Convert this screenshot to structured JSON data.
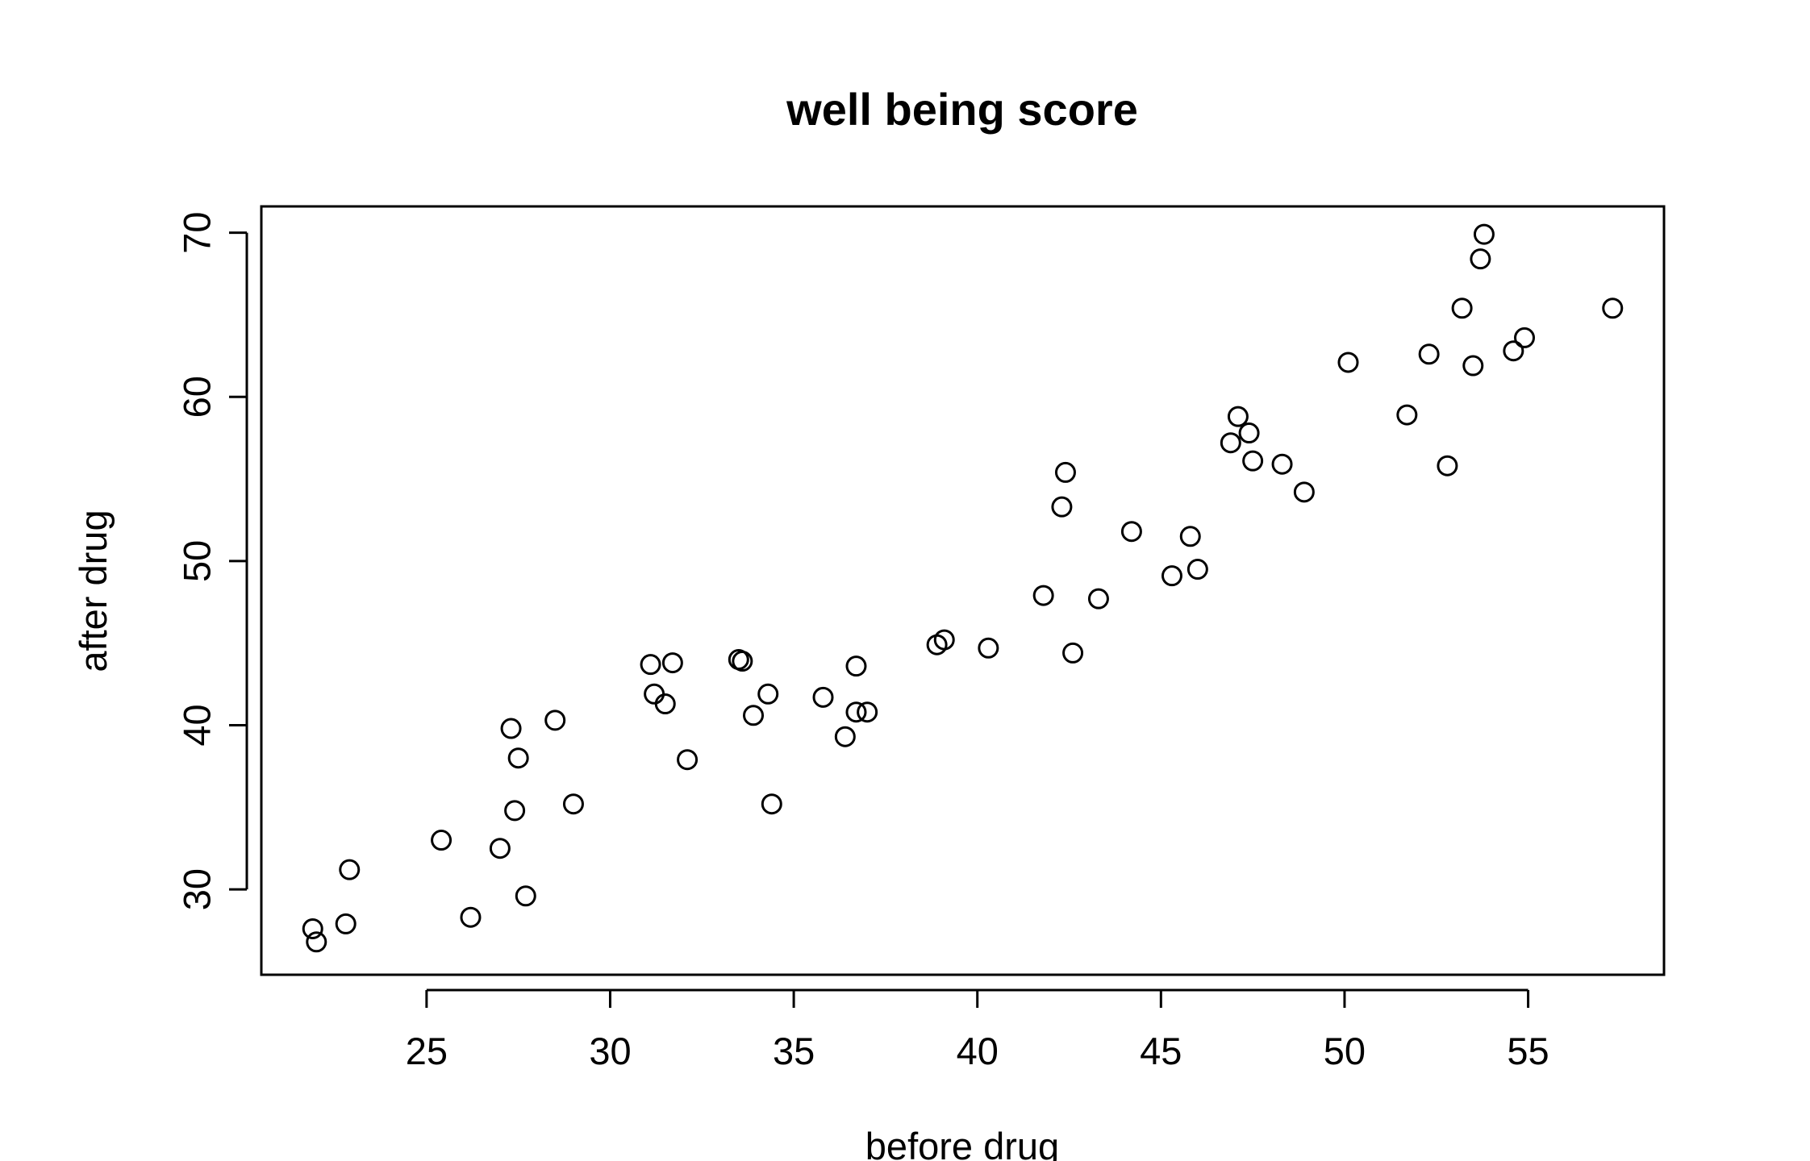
{
  "chart_data": {
    "type": "scatter",
    "title": "well being score",
    "xlabel": "before drug",
    "ylabel": "after drug",
    "xlim": [
      20.5,
      58.7
    ],
    "ylim": [
      24.8,
      71.6
    ],
    "xticks": [
      25,
      30,
      35,
      40,
      45,
      50,
      55
    ],
    "yticks": [
      30,
      40,
      50,
      60,
      70
    ],
    "grid": false,
    "points": [
      {
        "x": 21.9,
        "y": 27.6
      },
      {
        "x": 22.0,
        "y": 26.8
      },
      {
        "x": 22.8,
        "y": 27.9
      },
      {
        "x": 22.9,
        "y": 31.2
      },
      {
        "x": 25.4,
        "y": 33.0
      },
      {
        "x": 26.2,
        "y": 28.3
      },
      {
        "x": 27.0,
        "y": 32.5
      },
      {
        "x": 27.3,
        "y": 39.8
      },
      {
        "x": 27.4,
        "y": 34.8
      },
      {
        "x": 27.5,
        "y": 38.0
      },
      {
        "x": 27.7,
        "y": 29.6
      },
      {
        "x": 28.5,
        "y": 40.3
      },
      {
        "x": 29.0,
        "y": 35.2
      },
      {
        "x": 31.1,
        "y": 43.7
      },
      {
        "x": 31.2,
        "y": 41.9
      },
      {
        "x": 31.5,
        "y": 41.3
      },
      {
        "x": 31.7,
        "y": 43.8
      },
      {
        "x": 32.1,
        "y": 37.9
      },
      {
        "x": 33.5,
        "y": 44.0
      },
      {
        "x": 33.6,
        "y": 43.9
      },
      {
        "x": 33.9,
        "y": 40.6
      },
      {
        "x": 34.3,
        "y": 41.9
      },
      {
        "x": 34.4,
        "y": 35.2
      },
      {
        "x": 35.8,
        "y": 41.7
      },
      {
        "x": 36.4,
        "y": 39.3
      },
      {
        "x": 36.7,
        "y": 43.6
      },
      {
        "x": 36.7,
        "y": 40.8
      },
      {
        "x": 37.0,
        "y": 40.8
      },
      {
        "x": 38.9,
        "y": 44.9
      },
      {
        "x": 39.1,
        "y": 45.2
      },
      {
        "x": 40.3,
        "y": 44.7
      },
      {
        "x": 41.8,
        "y": 47.9
      },
      {
        "x": 42.3,
        "y": 53.3
      },
      {
        "x": 42.4,
        "y": 55.4
      },
      {
        "x": 42.6,
        "y": 44.4
      },
      {
        "x": 43.3,
        "y": 47.7
      },
      {
        "x": 44.2,
        "y": 51.8
      },
      {
        "x": 45.3,
        "y": 49.1
      },
      {
        "x": 45.8,
        "y": 51.5
      },
      {
        "x": 46.0,
        "y": 49.5
      },
      {
        "x": 46.9,
        "y": 57.2
      },
      {
        "x": 47.1,
        "y": 58.8
      },
      {
        "x": 47.4,
        "y": 57.8
      },
      {
        "x": 47.5,
        "y": 56.1
      },
      {
        "x": 48.3,
        "y": 55.9
      },
      {
        "x": 48.9,
        "y": 54.2
      },
      {
        "x": 50.1,
        "y": 62.1
      },
      {
        "x": 51.7,
        "y": 58.9
      },
      {
        "x": 52.3,
        "y": 62.6
      },
      {
        "x": 52.8,
        "y": 55.8
      },
      {
        "x": 53.2,
        "y": 65.4
      },
      {
        "x": 53.5,
        "y": 61.9
      },
      {
        "x": 53.7,
        "y": 68.4
      },
      {
        "x": 53.8,
        "y": 69.9
      },
      {
        "x": 54.6,
        "y": 62.8
      },
      {
        "x": 54.9,
        "y": 63.6
      },
      {
        "x": 57.3,
        "y": 65.4
      }
    ]
  }
}
